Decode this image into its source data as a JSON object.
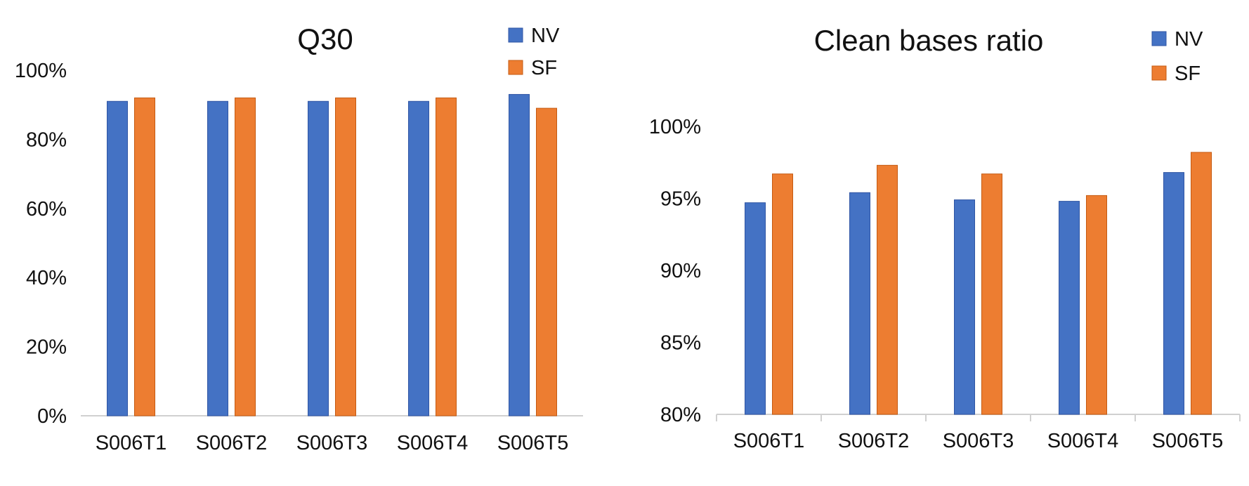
{
  "chart_data": [
    {
      "type": "bar",
      "title": "Q30",
      "xlabel": "",
      "ylabel": "",
      "categories": [
        "S006T1",
        "S006T2",
        "S006T3",
        "S006T4",
        "S006T5"
      ],
      "series": [
        {
          "name": "NV",
          "values": [
            91,
            91,
            91,
            91,
            93
          ]
        },
        {
          "name": "SF",
          "values": [
            92,
            92,
            92,
            92,
            89
          ]
        }
      ],
      "ylim": [
        0,
        100
      ],
      "yticks": [
        0,
        20,
        40,
        60,
        80,
        100
      ],
      "ytick_labels": [
        "0%",
        "20%",
        "40%",
        "60%",
        "80%",
        "100%"
      ],
      "grid": false,
      "legend_position": "top-right",
      "colors": {
        "NV": "#4472c4",
        "SF": "#ed7d31"
      }
    },
    {
      "type": "bar",
      "title": "Clean bases ratio",
      "xlabel": "",
      "ylabel": "",
      "categories": [
        "S006T1",
        "S006T2",
        "S006T3",
        "S006T4",
        "S006T5"
      ],
      "series": [
        {
          "name": "NV",
          "values": [
            94.7,
            95.4,
            94.9,
            94.8,
            96.8
          ]
        },
        {
          "name": "SF",
          "values": [
            96.7,
            97.3,
            96.7,
            95.2,
            98.2
          ]
        }
      ],
      "ylim": [
        80,
        100
      ],
      "yticks": [
        80,
        85,
        90,
        95,
        100
      ],
      "ytick_labels": [
        "80%",
        "85%",
        "90%",
        "95%",
        "100%"
      ],
      "grid": false,
      "legend_position": "top-right",
      "colors": {
        "NV": "#4472c4",
        "SF": "#ed7d31"
      }
    }
  ]
}
